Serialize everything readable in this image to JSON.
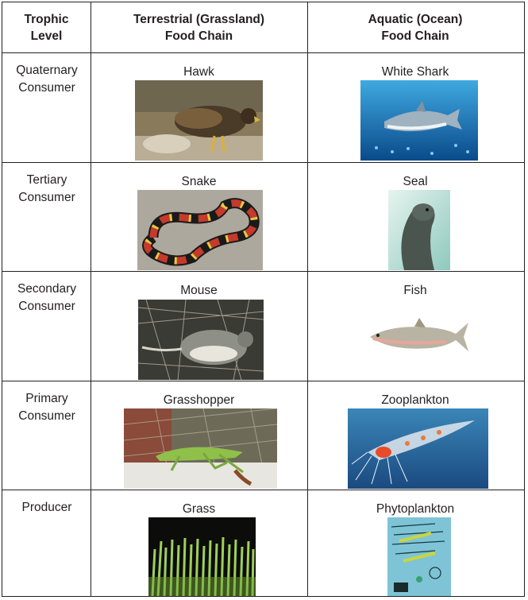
{
  "header": {
    "trophic": [
      "Trophic",
      "Level"
    ],
    "terrestrial": [
      "Terrestrial (Grassland)",
      "Food Chain"
    ],
    "aquatic": [
      "Aquatic (Ocean)",
      "Food Chain"
    ]
  },
  "rows": [
    {
      "level": [
        "Quaternary",
        "Consumer"
      ],
      "terrestrial": "Hawk",
      "aquatic": "White Shark",
      "terrestrial_icon": "hawk-photo",
      "aquatic_icon": "white-shark-photo"
    },
    {
      "level": [
        "Tertiary",
        "Consumer"
      ],
      "terrestrial": "Snake",
      "aquatic": "Seal",
      "terrestrial_icon": "snake-photo",
      "aquatic_icon": "seal-photo"
    },
    {
      "level": [
        "Secondary",
        "Consumer"
      ],
      "terrestrial": "Mouse",
      "aquatic": "Fish",
      "terrestrial_icon": "mouse-photo",
      "aquatic_icon": "fish-photo"
    },
    {
      "level": [
        "Primary",
        "Consumer"
      ],
      "terrestrial": "Grasshopper",
      "aquatic": "Zooplankton",
      "terrestrial_icon": "grasshopper-photo",
      "aquatic_icon": "zooplankton-photo"
    },
    {
      "level": [
        "Producer"
      ],
      "terrestrial": "Grass",
      "aquatic": "Phytoplankton",
      "terrestrial_icon": "grass-photo",
      "aquatic_icon": "phytoplankton-photo"
    }
  ],
  "colors": {
    "border": "#231f20",
    "text": "#231f20",
    "background": "#ffffff"
  }
}
